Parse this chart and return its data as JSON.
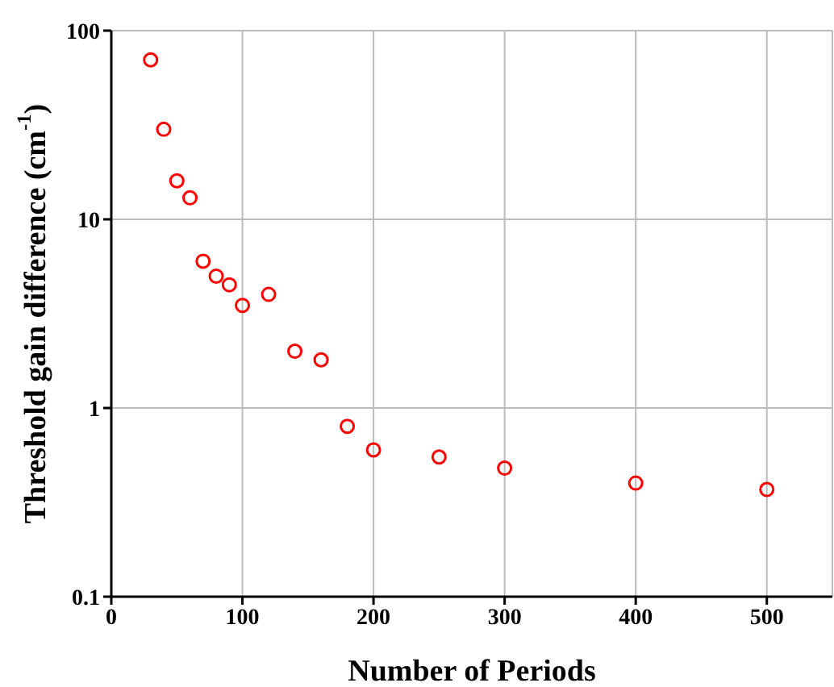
{
  "chart_data": {
    "type": "scatter",
    "xlabel": "Number of Periods",
    "ylabel": "Threshold gain difference (cm$^{-1}$)",
    "x": [
      30,
      40,
      50,
      60,
      70,
      80,
      90,
      100,
      120,
      140,
      160,
      180,
      200,
      250,
      300,
      400,
      500
    ],
    "series": [
      {
        "color": "#ff0000",
        "values": [
          70,
          30,
          16,
          13,
          6,
          5,
          4.5,
          3.5,
          4,
          2,
          1.8,
          0.8,
          0.6,
          0.55,
          0.48,
          0.4,
          0.37
        ]
      }
    ],
    "xlim": [
      0,
      550
    ],
    "xticks": [
      0,
      100,
      200,
      300,
      400,
      500
    ],
    "ylim": [
      0.1,
      100
    ],
    "yticks": [
      0.1,
      1,
      10,
      100
    ],
    "log": "y",
    "grid": true,
    "marker": "circle"
  }
}
